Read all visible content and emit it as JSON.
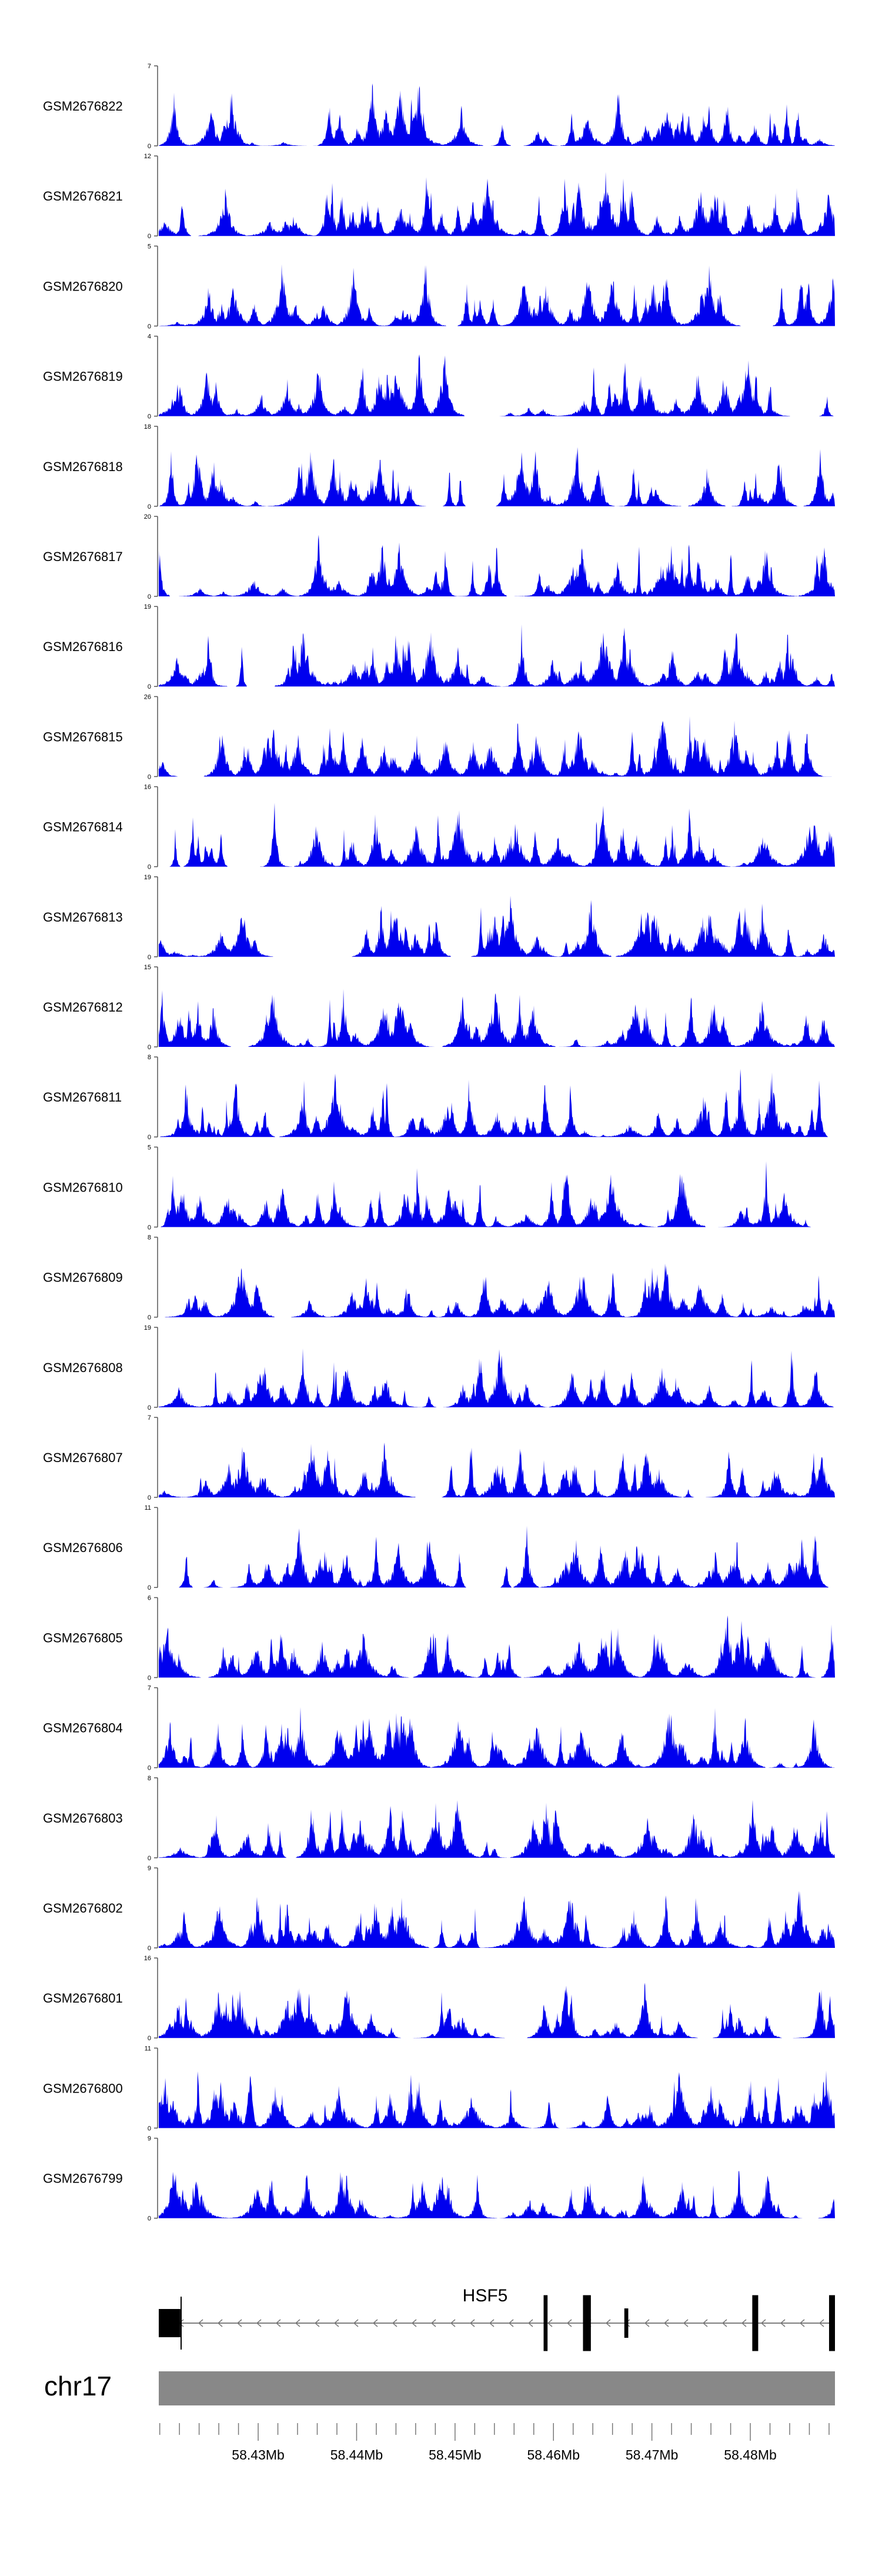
{
  "chart_data": {
    "type": "area",
    "color": "#0000ee",
    "tracks": [
      {
        "name": "GSM2676822",
        "ymin": "0",
        "ymax": "7",
        "seed": 1,
        "peaks": [
          {
            "x": 0.385,
            "h": 1.0,
            "w": 0.012
          }
        ]
      },
      {
        "name": "GSM2676821",
        "ymin": "0",
        "ymax": "12",
        "seed": 2,
        "peaks": [
          {
            "x": 0.395,
            "h": 1.0,
            "w": 0.006
          }
        ]
      },
      {
        "name": "GSM2676820",
        "ymin": "0",
        "ymax": "5",
        "seed": 3,
        "peaks": [
          {
            "x": 0.395,
            "h": 0.95,
            "w": 0.01
          }
        ]
      },
      {
        "name": "GSM2676819",
        "ymin": "0",
        "ymax": "4",
        "seed": 4,
        "peaks": [
          {
            "x": 0.385,
            "h": 0.95,
            "w": 0.01
          }
        ]
      },
      {
        "name": "GSM2676818",
        "ymin": "0",
        "ymax": "18",
        "seed": 5,
        "peaks": [
          {
            "x": 0.978,
            "h": 1.0,
            "w": 0.008
          }
        ]
      },
      {
        "name": "GSM2676817",
        "ymin": "0",
        "ymax": "20",
        "seed": 6,
        "peaks": []
      },
      {
        "name": "GSM2676816",
        "ymin": "0",
        "ymax": "19",
        "seed": 7,
        "peaks": []
      },
      {
        "name": "GSM2676815",
        "ymin": "0",
        "ymax": "26",
        "seed": 8,
        "peaks": []
      },
      {
        "name": "GSM2676814",
        "ymin": "0",
        "ymax": "16",
        "seed": 9,
        "peaks": []
      },
      {
        "name": "GSM2676813",
        "ymin": "0",
        "ymax": "19",
        "seed": 10,
        "peaks": []
      },
      {
        "name": "GSM2676812",
        "ymin": "0",
        "ymax": "15",
        "seed": 11,
        "peaks": []
      },
      {
        "name": "GSM2676811",
        "ymin": "0",
        "ymax": "8",
        "seed": 12,
        "peaks": []
      },
      {
        "name": "GSM2676810",
        "ymin": "0",
        "ymax": "5",
        "seed": 13,
        "peaks": []
      },
      {
        "name": "GSM2676809",
        "ymin": "0",
        "ymax": "8",
        "seed": 14,
        "peaks": []
      },
      {
        "name": "GSM2676808",
        "ymin": "0",
        "ymax": "19",
        "seed": 15,
        "peaks": []
      },
      {
        "name": "GSM2676807",
        "ymin": "0",
        "ymax": "7",
        "seed": 16,
        "peaks": []
      },
      {
        "name": "GSM2676806",
        "ymin": "0",
        "ymax": "11",
        "seed": 17,
        "peaks": []
      },
      {
        "name": "GSM2676805",
        "ymin": "0",
        "ymax": "6",
        "seed": 18,
        "peaks": []
      },
      {
        "name": "GSM2676804",
        "ymin": "0",
        "ymax": "7",
        "seed": 19,
        "peaks": []
      },
      {
        "name": "GSM2676803",
        "ymin": "0",
        "ymax": "8",
        "seed": 20,
        "peaks": []
      },
      {
        "name": "GSM2676802",
        "ymin": "0",
        "ymax": "9",
        "seed": 21,
        "peaks": []
      },
      {
        "name": "GSM2676801",
        "ymin": "0",
        "ymax": "16",
        "seed": 22,
        "peaks": [
          {
            "x": 0.978,
            "h": 1.0,
            "w": 0.008
          }
        ]
      },
      {
        "name": "GSM2676800",
        "ymin": "0",
        "ymax": "11",
        "seed": 23,
        "peaks": [
          {
            "x": 0.135,
            "h": 1.0,
            "w": 0.006
          }
        ]
      },
      {
        "name": "GSM2676799",
        "ymin": "0",
        "ymax": "9",
        "seed": 24,
        "peaks": []
      }
    ],
    "gene": {
      "name": "HSF5",
      "exons": [
        {
          "start": 58.4199,
          "end": 58.4221
        },
        {
          "start": 58.459,
          "end": 58.4594
        },
        {
          "start": 58.463,
          "end": 58.4638
        },
        {
          "start": 58.4672,
          "end": 58.4676
        },
        {
          "start": 58.4802,
          "end": 58.4808
        },
        {
          "start": 58.488,
          "end": 58.4886
        }
      ],
      "start": 58.4199,
      "end": 58.4886
    },
    "chromosome": "chr17",
    "xlim": [
      58.4199,
      58.4886
    ],
    "x_ticks": [
      58.43,
      58.44,
      58.45,
      58.46,
      58.47,
      58.48
    ],
    "x_tick_labels": [
      "58.43Mb",
      "58.44Mb",
      "58.45Mb",
      "58.46Mb",
      "58.47Mb",
      "58.48Mb"
    ]
  }
}
